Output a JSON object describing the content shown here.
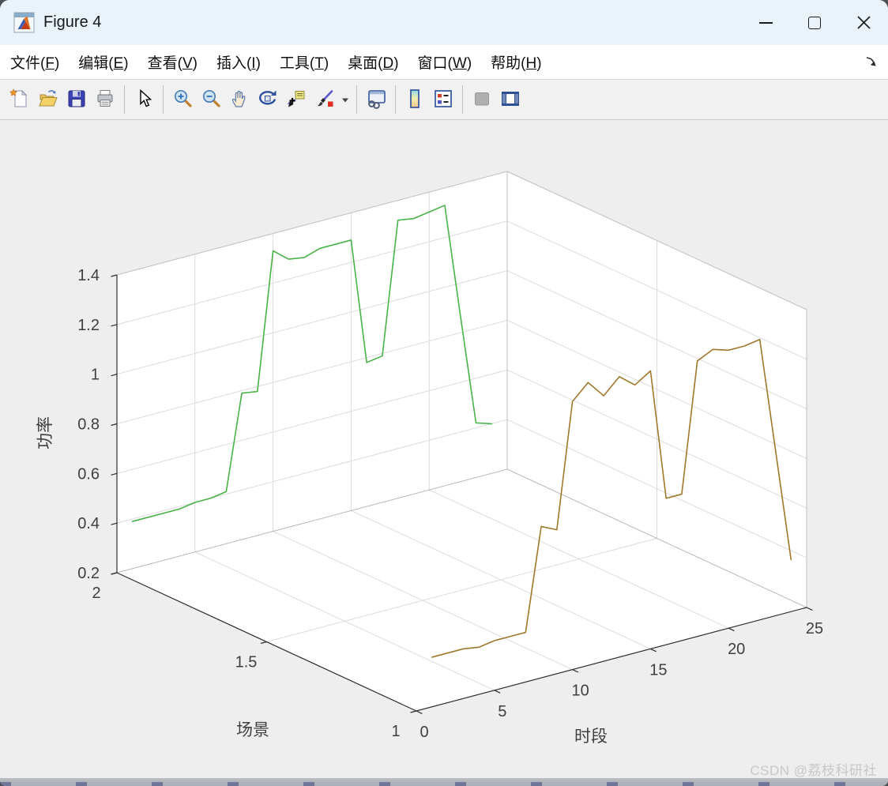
{
  "window": {
    "title": "Figure 4"
  },
  "menu": {
    "items": [
      {
        "name": "file",
        "label": "文件",
        "mnemonic": "F"
      },
      {
        "name": "edit",
        "label": "编辑",
        "mnemonic": "E"
      },
      {
        "name": "view",
        "label": "查看",
        "mnemonic": "V"
      },
      {
        "name": "insert",
        "label": "插入",
        "mnemonic": "I"
      },
      {
        "name": "tools",
        "label": "工具",
        "mnemonic": "T"
      },
      {
        "name": "desktop",
        "label": "桌面",
        "mnemonic": "D"
      },
      {
        "name": "window",
        "label": "窗口",
        "mnemonic": "W"
      },
      {
        "name": "help",
        "label": "帮助",
        "mnemonic": "H"
      }
    ]
  },
  "toolbar": {
    "items": [
      {
        "name": "new-figure"
      },
      {
        "name": "open-file"
      },
      {
        "name": "save-figure"
      },
      {
        "name": "print-figure"
      },
      {
        "name": "separator"
      },
      {
        "name": "edit-cursor"
      },
      {
        "name": "separator"
      },
      {
        "name": "zoom-in"
      },
      {
        "name": "zoom-out"
      },
      {
        "name": "pan"
      },
      {
        "name": "rotate-3d"
      },
      {
        "name": "data-cursor"
      },
      {
        "name": "brush"
      },
      {
        "name": "brush-dropdown"
      },
      {
        "name": "separator"
      },
      {
        "name": "link-plot"
      },
      {
        "name": "separator"
      },
      {
        "name": "insert-colorbar"
      },
      {
        "name": "insert-legend"
      },
      {
        "name": "separator"
      },
      {
        "name": "hide-plot-tools",
        "disabled": true
      },
      {
        "name": "show-plot-tools"
      }
    ]
  },
  "watermark": "CSDN @荔枝科研社",
  "chart_data": {
    "type": "line",
    "subtype": "plot3-3d-lines",
    "xlabel": "时段",
    "ylabel": "场景",
    "zlabel": "功率",
    "xlim": [
      0,
      25
    ],
    "ylim": [
      1,
      2
    ],
    "zlim": [
      0.2,
      1.4
    ],
    "xticks": [
      "0",
      "5",
      "10",
      "15",
      "20",
      "25"
    ],
    "yticks": [
      "1",
      "1.5",
      "2"
    ],
    "zticks": [
      "0.2",
      "0.4",
      "0.6",
      "0.8",
      "1",
      "1.2",
      "1.4"
    ],
    "grid": true,
    "view": {
      "azimuth": -37.5,
      "elevation": 30
    },
    "colors": {
      "series_scenario2": "#47b347",
      "series_scenario1": "#a0782a",
      "wall": "#ffffff",
      "figure_bg": "#eeeeee",
      "grid_line": "#dcdcdc"
    },
    "x": [
      1,
      2,
      3,
      4,
      5,
      6,
      7,
      8,
      9,
      10,
      11,
      12,
      13,
      14,
      15,
      16,
      17,
      18,
      19,
      20,
      21,
      22,
      23,
      24
    ],
    "series": [
      {
        "name": "scenario-2-power",
        "y": 2,
        "color": "#47b347",
        "values": [
          0.39,
          0.39,
          0.39,
          0.39,
          0.4,
          0.4,
          0.41,
          0.79,
          0.78,
          1.33,
          1.28,
          1.27,
          1.29,
          1.29,
          1.29,
          0.78,
          0.79,
          1.32,
          1.31,
          1.32,
          1.33,
          0.87,
          0.42,
          0.4
        ]
      },
      {
        "name": "scenario-1-power",
        "y": 1,
        "color": "#a0782a",
        "values": [
          0.4,
          0.4,
          0.4,
          0.39,
          0.4,
          0.4,
          0.4,
          0.81,
          0.78,
          1.28,
          1.34,
          1.27,
          1.33,
          1.28,
          1.32,
          0.79,
          0.79,
          1.31,
          1.34,
          1.32,
          1.32,
          1.33,
          0.87,
          0.41
        ]
      }
    ]
  }
}
